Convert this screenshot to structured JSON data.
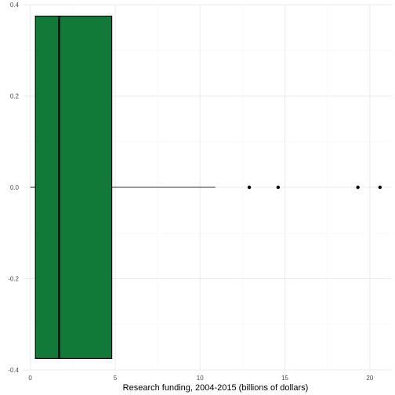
{
  "chart_data": {
    "type": "box",
    "orientation": "horizontal",
    "title": "",
    "xlabel": "Research funding, 2004-2015 (billions of dollars)",
    "ylabel": "",
    "xlim": [
      -0.4,
      21.3
    ],
    "ylim": [
      -0.4,
      0.4
    ],
    "x_ticks": [
      0,
      5,
      10,
      15,
      20
    ],
    "x_tick_labels": [
      "0",
      "5",
      "10",
      "15",
      "20"
    ],
    "y_ticks": [
      -0.4,
      -0.2,
      0.0,
      0.2,
      0.4
    ],
    "y_tick_labels": [
      "-0.4",
      "-0.2",
      "0.0",
      "0.2",
      "0.4"
    ],
    "grid": true,
    "box": {
      "whisker_low": 0.0,
      "q1": 0.3,
      "median": 1.7,
      "q3": 4.8,
      "whisker_high": 10.9,
      "y_center": 0.0,
      "y_extent": [
        -0.375,
        0.375
      ],
      "outliers": [
        12.9,
        14.6,
        19.3,
        20.6
      ]
    },
    "colors": {
      "box_fill": "#117a39",
      "box_outline": "#000000",
      "whisker": "#333333",
      "outlier": "#000000",
      "grid_major": "#ebebeb",
      "grid_minor": "#f5f5f5"
    }
  }
}
